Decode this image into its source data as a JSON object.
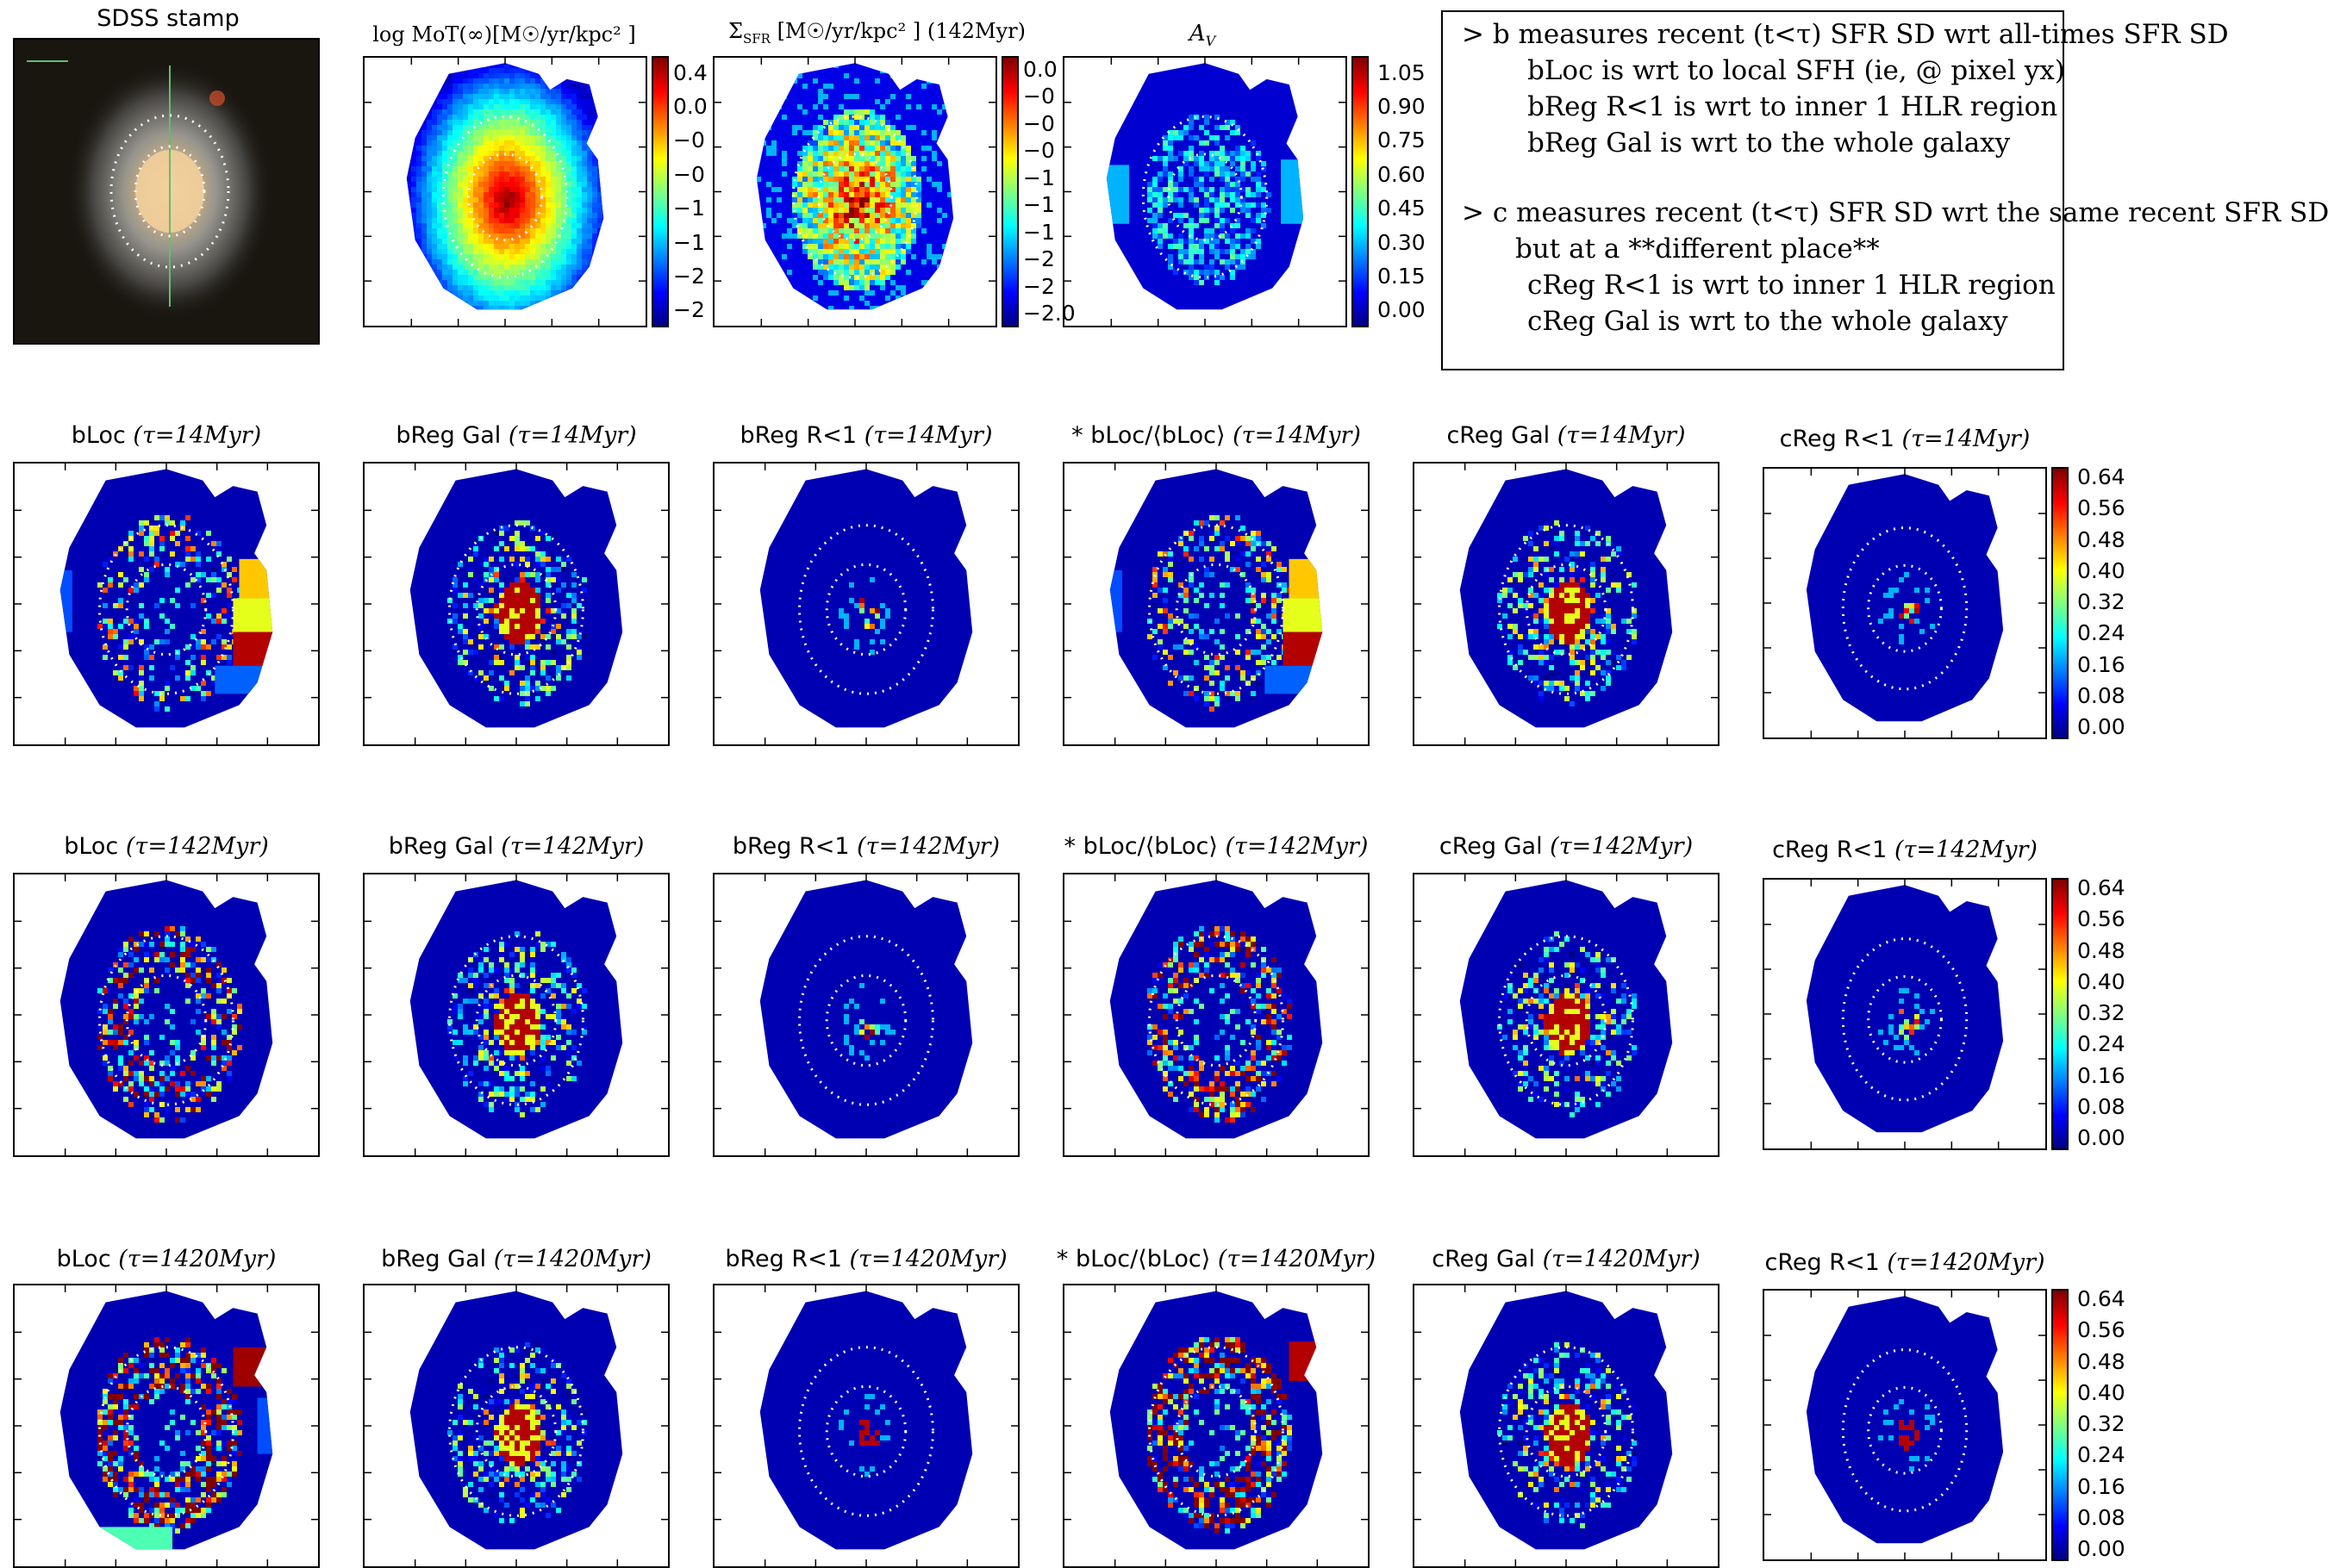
{
  "header": {
    "sdss_title": "SDSS stamp",
    "mot_title": "log MoT(∞)[M☉/yr/kpc² ]",
    "sfr_title": "Σ",
    "sfr_sub": "SFR",
    "sfr_title_rest": "[M☉/yr/kpc² ] (142Myr)",
    "av_title": "A",
    "av_sub": "V"
  },
  "note_lines": [
    "> b measures recent (t<τ) SFR SD wrt all-times SFR SD",
    "bLoc is wrt to local SFH (ie, @ pixel yx)",
    "bReg R<1 is wrt to inner 1 HLR region",
    "bReg Gal is wrt to the whole galaxy",
    "> c measures recent (t<τ) SFR SD wrt the same recent SFR SD",
    "but at a **different place**",
    "cReg R<1 is wrt to inner 1 HLR region",
    "cReg Gal is wrt to the whole galaxy"
  ],
  "colorbars": {
    "mot": [
      "0.4",
      "0.0",
      "−0",
      "−0",
      "−1",
      "−1",
      "−2",
      "−2"
    ],
    "sfr": [
      "0.0",
      "−0",
      "−0",
      "−0",
      "−1",
      "−1",
      "−1",
      "−2",
      "−2",
      "−2.0"
    ],
    "av": [
      "1.05",
      "0.90",
      "0.75",
      "0.60",
      "0.45",
      "0.30",
      "0.15",
      "0.00"
    ],
    "ratio": [
      "0.64",
      "0.56",
      "0.48",
      "0.40",
      "0.32",
      "0.24",
      "0.16",
      "0.08",
      "0.00"
    ]
  },
  "rows": [
    {
      "tau": "τ=14Myr",
      "panels": [
        "bLoc",
        "bReg Gal",
        "bReg R<1",
        "* bLoc/⟨bLoc⟩",
        "cReg Gal",
        "cReg R<1"
      ]
    },
    {
      "tau": "τ=142Myr",
      "panels": [
        "bLoc",
        "bReg Gal",
        "bReg R<1",
        "* bLoc/⟨bLoc⟩",
        "cReg Gal",
        "cReg R<1"
      ]
    },
    {
      "tau": "τ=1420Myr",
      "panels": [
        "bLoc",
        "bReg Gal",
        "bReg R<1",
        "* bLoc/⟨bLoc⟩",
        "cReg Gal",
        "cReg R<1"
      ]
    }
  ],
  "chart_data": [
    {
      "type": "heatmap",
      "title": "SDSS stamp",
      "description_of_content": "galaxy image"
    },
    {
      "type": "heatmap",
      "title": "log MoT(∞)[M☉/yr/kpc² ]",
      "colorbar_ticks": [
        "0.4",
        "0.0",
        "−0",
        "−0",
        "−1",
        "−1",
        "−2",
        "−2"
      ]
    },
    {
      "type": "heatmap",
      "title": "ΣSFR [M☉/yr/kpc² ] (142Myr)",
      "colorbar_ticks": [
        "0.0",
        "−0",
        "−0",
        "−0",
        "−1",
        "−1",
        "−1",
        "−2",
        "−2",
        "−2.0"
      ]
    },
    {
      "type": "heatmap",
      "title": "AV",
      "colorbar_ticks": [
        "1.05",
        "0.90",
        "0.75",
        "0.60",
        "0.45",
        "0.30",
        "0.15",
        "0.00"
      ],
      "clim": [
        0.0,
        1.05
      ]
    },
    {
      "type": "heatmap",
      "panel_grid": "3 rows (τ=14, 142, 1420 Myr) × 6 panels",
      "panels": [
        "bLoc",
        "bReg Gal",
        "bReg R<1",
        "* bLoc/⟨bLoc⟩",
        "cReg Gal",
        "cReg R<1"
      ],
      "colorbar_ticks": [
        "0.64",
        "0.56",
        "0.48",
        "0.40",
        "0.32",
        "0.24",
        "0.16",
        "0.08",
        "0.00"
      ],
      "clim": [
        0.0,
        0.64
      ]
    }
  ]
}
